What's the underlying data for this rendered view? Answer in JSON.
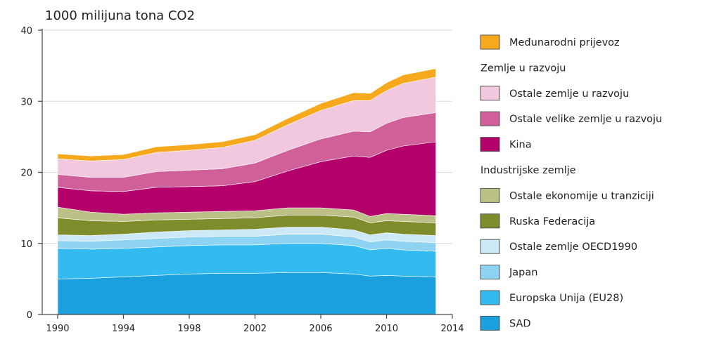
{
  "chart_data": {
    "type": "area",
    "stacked": true,
    "unit_label": "1000 milijuna tona CO2",
    "x": [
      1990,
      1992,
      1994,
      1996,
      1998,
      2000,
      2002,
      2004,
      2006,
      2008,
      2009,
      2010,
      2011,
      2013
    ],
    "x_ticks": [
      1990,
      1994,
      1998,
      2002,
      2006,
      2010,
      2014
    ],
    "y_ticks": [
      0,
      10,
      20,
      30,
      40
    ],
    "xlim": [
      1990,
      2014
    ],
    "ylim": [
      0,
      40
    ],
    "grid": true,
    "legend_position": "right",
    "series": [
      {
        "name": "SAD",
        "color": "#1aa0dc",
        "values": [
          5.0,
          5.1,
          5.3,
          5.5,
          5.7,
          5.8,
          5.8,
          5.9,
          5.9,
          5.7,
          5.4,
          5.5,
          5.4,
          5.3
        ]
      },
      {
        "name": "Europska Unija (EU28)",
        "color": "#33bbef",
        "values": [
          4.3,
          4.1,
          4.0,
          4.0,
          4.0,
          4.0,
          4.0,
          4.1,
          4.1,
          4.0,
          3.7,
          3.8,
          3.7,
          3.6
        ]
      },
      {
        "name": "Japan",
        "color": "#8fd3f3",
        "values": [
          1.1,
          1.1,
          1.2,
          1.2,
          1.2,
          1.2,
          1.2,
          1.3,
          1.3,
          1.2,
          1.1,
          1.2,
          1.2,
          1.2
        ]
      },
      {
        "name": "Ostale zemlje OECD1990",
        "color": "#cde9f7",
        "values": [
          0.8,
          0.8,
          0.8,
          0.9,
          0.9,
          0.9,
          1.0,
          1.0,
          1.0,
          1.0,
          1.0,
          1.0,
          1.0,
          1.0
        ]
      },
      {
        "name": "Ruska Federacija",
        "color": "#7f8c2c",
        "values": [
          2.4,
          2.1,
          1.8,
          1.7,
          1.6,
          1.6,
          1.6,
          1.7,
          1.7,
          1.8,
          1.7,
          1.7,
          1.8,
          1.8
        ]
      },
      {
        "name": "Ostale ekonomije u tranziciji",
        "color": "#bcc087",
        "values": [
          1.5,
          1.2,
          1.0,
          1.0,
          1.0,
          1.0,
          1.0,
          1.0,
          1.0,
          1.0,
          0.9,
          1.0,
          1.0,
          1.0
        ]
      },
      {
        "name": "Kina",
        "color": "#b3006a",
        "values": [
          2.8,
          3.0,
          3.2,
          3.6,
          3.6,
          3.6,
          4.1,
          5.2,
          6.5,
          7.6,
          8.3,
          8.9,
          9.6,
          10.4
        ]
      },
      {
        "name": "Ostale velike zemlje u razvoju",
        "color": "#d0609a",
        "values": [
          1.8,
          1.9,
          2.0,
          2.2,
          2.3,
          2.4,
          2.6,
          2.9,
          3.2,
          3.5,
          3.6,
          3.8,
          4.0,
          4.1
        ]
      },
      {
        "name": "Ostale zemlje u razvoju",
        "color": "#f1c8de",
        "values": [
          2.2,
          2.3,
          2.5,
          2.7,
          2.8,
          3.0,
          3.2,
          3.6,
          4.0,
          4.3,
          4.4,
          4.6,
          4.8,
          5.0
        ]
      },
      {
        "name": "Međunarodni prijevoz",
        "color": "#f6a91d",
        "values": [
          0.7,
          0.7,
          0.7,
          0.8,
          0.8,
          0.8,
          0.8,
          0.9,
          1.0,
          1.1,
          1.0,
          1.1,
          1.2,
          1.2
        ]
      }
    ]
  },
  "legend": {
    "groups": [
      {
        "header": null,
        "items": [
          "Međunarodni prijevoz"
        ]
      },
      {
        "header": "Zemlje u razvoju",
        "items": [
          "Ostale zemlje u razvoju",
          "Ostale velike zemlje u razvoju",
          "Kina"
        ]
      },
      {
        "header": "Industrijske zemlje",
        "items": [
          "Ostale ekonomije u tranziciji",
          "Ruska Federacija",
          "Ostale zemlje OECD1990",
          "Japan",
          "Europska Unija (EU28)",
          "SAD"
        ]
      }
    ]
  }
}
